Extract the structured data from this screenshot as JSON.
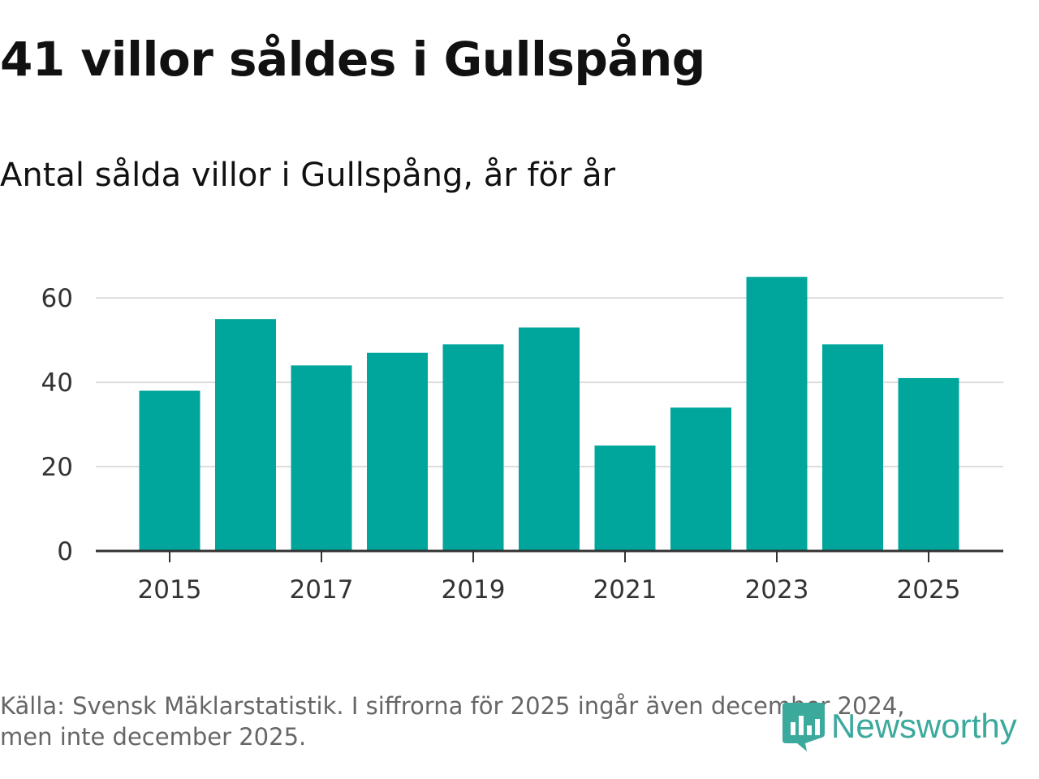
{
  "header": {
    "title": "41 villor såldes i Gullspång",
    "subtitle": "Antal sålda villor i Gullspång, år för år"
  },
  "chart_data": {
    "type": "bar",
    "title": "41 villor såldes i Gullspång",
    "subtitle": "Antal sålda villor i Gullspång, år för år",
    "categories": [
      "2015",
      "2016",
      "2017",
      "2018",
      "2019",
      "2020",
      "2021",
      "2022",
      "2023",
      "2024",
      "2025"
    ],
    "values": [
      38,
      55,
      44,
      47,
      49,
      53,
      25,
      34,
      65,
      49,
      41
    ],
    "x_tick_labels": [
      "2015",
      "2017",
      "2019",
      "2021",
      "2023",
      "2025"
    ],
    "y_ticks": [
      0,
      20,
      40,
      60
    ],
    "ylim": [
      0,
      66
    ],
    "xlabel": "",
    "ylabel": "",
    "grid": true,
    "bar_color": "#00a59b"
  },
  "footer": {
    "source_line1": "Källa: Svensk Mäklarstatistik. I siffrorna för 2025 ingår även december 2024,",
    "source_line2": "men inte december 2025."
  },
  "logo": {
    "text": "Newsworthy",
    "color": "#3ba99c",
    "icon": "newsworthy-logo-icon"
  }
}
